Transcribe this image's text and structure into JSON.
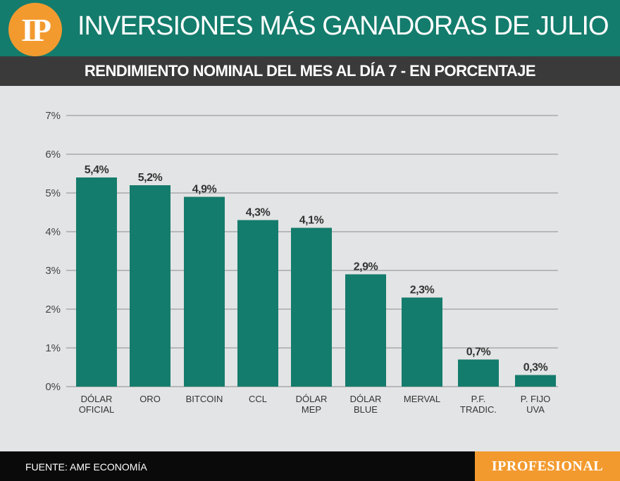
{
  "header": {
    "logo_text": "IP",
    "title": "INVERSIONES MÁS GANADORAS DE JULIO",
    "subtitle": "RENDIMIENTO NOMINAL DEL MES AL DÍA 7 - EN PORCENTAJE"
  },
  "footer": {
    "source": "FUENTE: AMF ECONOMÍA",
    "brand": "IPROFESIONAL"
  },
  "colors": {
    "bar": "#147c6c",
    "header_bg": "#147c6c",
    "subheader_bg": "#3a3a3a",
    "accent": "#f39a2f",
    "background": "#e3e4e5"
  },
  "chart_data": {
    "type": "bar",
    "title": "RENDIMIENTO NOMINAL DEL MES AL DÍA 7 - EN PORCENTAJE",
    "categories": [
      [
        "DÓLAR",
        "OFICIAL"
      ],
      [
        "ORO"
      ],
      [
        "BITCOIN"
      ],
      [
        "CCL"
      ],
      [
        "DÓLAR",
        "MEP"
      ],
      [
        "DÓLAR",
        "BLUE"
      ],
      [
        "MERVAL"
      ],
      [
        "P.F.",
        "TRADIC."
      ],
      [
        "P. FIJO",
        "UVA"
      ]
    ],
    "values": [
      5.4,
      5.2,
      4.9,
      4.3,
      4.1,
      2.9,
      2.3,
      0.7,
      0.3
    ],
    "value_labels": [
      "5,4%",
      "5,2%",
      "4,9%",
      "4,3%",
      "4,1%",
      "2,9%",
      "2,3%",
      "0,7%",
      "0,3%"
    ],
    "yticks": [
      "0%",
      "1%",
      "2%",
      "3%",
      "4%",
      "5%",
      "6%",
      "7%"
    ],
    "ylim": [
      0,
      7
    ],
    "grid": true,
    "legend": "none"
  }
}
